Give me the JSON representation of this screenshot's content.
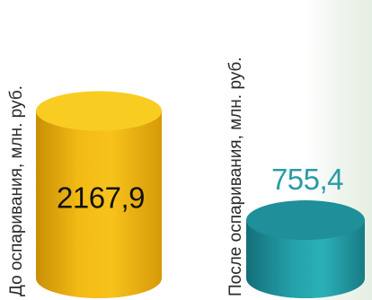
{
  "chart_data": {
    "type": "bar",
    "categories": [
      "До оспаривания, млн. руб.",
      "После оспаривания, млн. руб."
    ],
    "values": [
      2167.9,
      755.4
    ],
    "value_labels": [
      "2167,9",
      "755,4"
    ],
    "title": "",
    "xlabel": "",
    "ylabel": "",
    "grid": false,
    "legend": "none",
    "colors": {
      "bar1_light": "#f7c21b",
      "bar1_dark": "#c98f06",
      "bar1_top": "#f9cc22",
      "bar2_light": "#2bb0b8",
      "bar2_dark": "#146f78",
      "bar2_top": "#1f8f99",
      "label1_text": "#111111",
      "label2_text": "#2a9ca6"
    }
  }
}
